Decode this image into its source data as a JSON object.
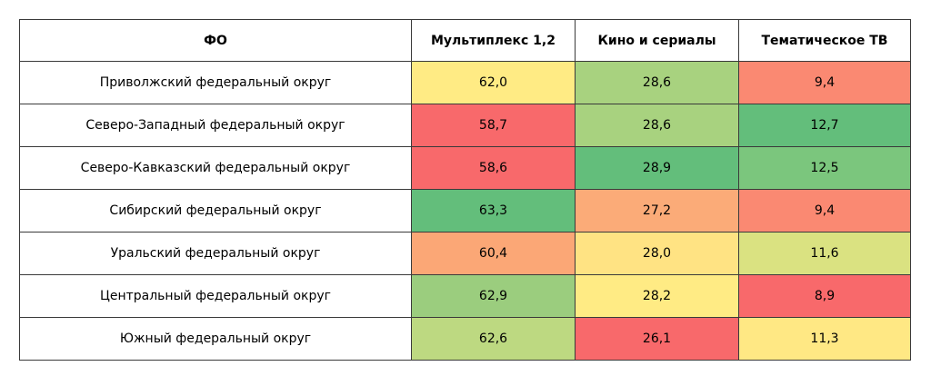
{
  "table": {
    "headers": [
      "ФО",
      "Мультиплекс 1,2",
      "Кино и сериалы",
      "Тематическое ТВ"
    ],
    "rows": [
      {
        "name": "Приволжский федеральный округ",
        "cells": [
          {
            "value": "62,0",
            "color": "#FFEB84"
          },
          {
            "value": "28,6",
            "color": "#A8D27F"
          },
          {
            "value": "9,4",
            "color": "#FA8972"
          }
        ]
      },
      {
        "name": "Северо-Западный федеральный округ",
        "cells": [
          {
            "value": "58,7",
            "color": "#F8696B"
          },
          {
            "value": "28,6",
            "color": "#A8D27F"
          },
          {
            "value": "12,7",
            "color": "#63BE7B"
          }
        ]
      },
      {
        "name": "Северо-Кавказский федеральный округ",
        "cells": [
          {
            "value": "58,6",
            "color": "#F8696B"
          },
          {
            "value": "28,9",
            "color": "#63BE7B"
          },
          {
            "value": "12,5",
            "color": "#7BC67D"
          }
        ]
      },
      {
        "name": "Сибирский федеральный округ",
        "cells": [
          {
            "value": "63,3",
            "color": "#63BE7B"
          },
          {
            "value": "27,2",
            "color": "#FBAB78"
          },
          {
            "value": "9,4",
            "color": "#FA8972"
          }
        ]
      },
      {
        "name": "Уральский федеральный округ",
        "cells": [
          {
            "value": "60,4",
            "color": "#FBA776"
          },
          {
            "value": "28,0",
            "color": "#FFE383"
          },
          {
            "value": "11,6",
            "color": "#DAE281"
          }
        ]
      },
      {
        "name": "Центральный федеральный округ",
        "cells": [
          {
            "value": "62,9",
            "color": "#9BCD7E"
          },
          {
            "value": "28,2",
            "color": "#FFEB84"
          },
          {
            "value": "8,9",
            "color": "#F8696B"
          }
        ]
      },
      {
        "name": "Южный федеральный округ",
        "cells": [
          {
            "value": "62,6",
            "color": "#BDD981"
          },
          {
            "value": "26,1",
            "color": "#F8696B"
          },
          {
            "value": "11,3",
            "color": "#FFE884"
          }
        ]
      }
    ]
  }
}
